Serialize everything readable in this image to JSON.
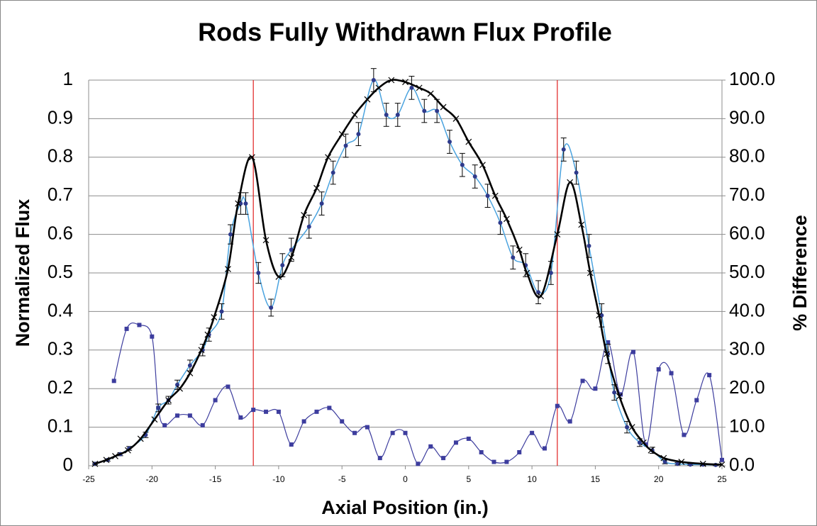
{
  "chart_data": {
    "type": "line",
    "title": "Rods Fully Withdrawn Flux Profile",
    "xlabel": "Axial Position (in.)",
    "ylabel": "Normalized Flux",
    "y2label": "% Difference",
    "xlim": [
      -25,
      25
    ],
    "xticks": [
      -25,
      -20,
      -15,
      -10,
      -5,
      0,
      5,
      10,
      15,
      20,
      25
    ],
    "ylim": [
      0,
      1
    ],
    "yticks": [
      0,
      0.1,
      0.2,
      0.3,
      0.4,
      0.5,
      0.6,
      0.7,
      0.8,
      0.9,
      1
    ],
    "y2lim": [
      0,
      100
    ],
    "y2ticks": [
      {
        "value": 0,
        "label": "0.0"
      },
      {
        "value": 10,
        "label": "10.0"
      },
      {
        "value": 20,
        "label": "20.0"
      },
      {
        "value": 30,
        "label": "30.0"
      },
      {
        "value": 40,
        "label": "40.0"
      },
      {
        "value": 50,
        "label": "50.0"
      },
      {
        "value": 60,
        "label": "60.0"
      },
      {
        "value": 70,
        "label": "70.0"
      },
      {
        "value": 80,
        "label": "80.0"
      },
      {
        "value": 90,
        "label": "90.0"
      },
      {
        "value": 100,
        "label": "100.0"
      }
    ],
    "grid": true,
    "vlines": [
      -12,
      12
    ],
    "vline_color": "#e02020",
    "series": [
      {
        "color": "#000000",
        "marker": "x",
        "line_width": 2.6,
        "x": [
          -24.5,
          -23.6,
          -22.9,
          -21.9,
          -20.9,
          -19.8,
          -18.7,
          -17.8,
          -17,
          -16.1,
          -15.6,
          -15.1,
          -14,
          -13.2,
          -12.1,
          -11,
          -10,
          -9,
          -8,
          -7,
          -6.1,
          -5,
          -4,
          -3,
          -2.1,
          -1.1,
          0,
          1.1,
          2,
          3,
          4,
          5,
          6.1,
          7.1,
          8,
          9,
          9.6,
          10.7,
          12,
          13,
          13.9,
          14.6,
          15.3,
          15.9,
          16.9,
          17.9,
          18.8,
          19.4,
          20.4,
          21.8,
          23.5,
          25
        ],
        "values": [
          0.005,
          0.015,
          0.025,
          0.04,
          0.07,
          0.12,
          0.17,
          0.2,
          0.24,
          0.3,
          0.34,
          0.385,
          0.51,
          0.68,
          0.8,
          0.585,
          0.49,
          0.54,
          0.65,
          0.72,
          0.8,
          0.86,
          0.91,
          0.95,
          0.98,
          1,
          0.995,
          0.98,
          0.965,
          0.93,
          0.9,
          0.84,
          0.78,
          0.7,
          0.64,
          0.56,
          0.5,
          0.44,
          0.6,
          0.735,
          0.625,
          0.5,
          0.39,
          0.29,
          0.18,
          0.1,
          0.06,
          0.04,
          0.02,
          0.01,
          0.005,
          0.003
        ]
      },
      {
        "color": "#4aa3df",
        "marker_color": "#2e3a8c",
        "marker": "circle",
        "line_width": 1.5,
        "x": [
          -24.5,
          -23.5,
          -22.5,
          -21.8,
          -20.5,
          -19.5,
          -18.7,
          -18,
          -17,
          -16,
          -15.5,
          -14.5,
          -13.8,
          -13,
          -12.6,
          -11.6,
          -10.6,
          -9.7,
          -9,
          -7.6,
          -6.6,
          -5.7,
          -4.7,
          -3.7,
          -2.5,
          -1.5,
          -0.6,
          0.5,
          1.5,
          2.5,
          3.5,
          4.5,
          5.5,
          6.5,
          7.5,
          8.5,
          9.5,
          10.5,
          11.5,
          12.5,
          13.5,
          14.5,
          15.5,
          16,
          16.5,
          17.5,
          18.5,
          19.5,
          20.5,
          21.5,
          22.5,
          23.5,
          24.5
        ],
        "values": [
          0.005,
          0.015,
          0.03,
          0.045,
          0.08,
          0.15,
          0.17,
          0.21,
          0.26,
          0.3,
          0.34,
          0.4,
          0.6,
          0.68,
          0.68,
          0.5,
          0.41,
          0.52,
          0.56,
          0.62,
          0.68,
          0.76,
          0.83,
          0.86,
          1,
          0.91,
          0.91,
          0.98,
          0.92,
          0.92,
          0.84,
          0.78,
          0.75,
          0.7,
          0.63,
          0.54,
          0.52,
          0.45,
          0.5,
          0.82,
          0.76,
          0.57,
          0.39,
          0.29,
          0.19,
          0.1,
          0.06,
          0.04,
          0.01,
          0.005,
          0.003,
          0.003,
          0.002
        ],
        "errors": [
          0.002,
          0.003,
          0.004,
          0.005,
          0.007,
          0.01,
          0.01,
          0.012,
          0.014,
          0.015,
          0.017,
          0.02,
          0.025,
          0.028,
          0.028,
          0.027,
          0.022,
          0.03,
          0.03,
          0.03,
          0.03,
          0.03,
          0.03,
          0.03,
          0.03,
          0.03,
          0.03,
          0.03,
          0.03,
          0.03,
          0.03,
          0.03,
          0.03,
          0.03,
          0.03,
          0.03,
          0.03,
          0.03,
          0.03,
          0.03,
          0.03,
          0.03,
          0.03,
          0.025,
          0.02,
          0.015,
          0.01,
          0.008,
          0.005,
          0.003,
          0.002,
          0.002,
          0.002
        ]
      },
      {
        "color": "#3d3d9e",
        "marker": "square",
        "line_width": 1.2,
        "axis": "y2",
        "x": [
          -23,
          -22,
          -21,
          -20,
          -19.5,
          -19,
          -18,
          -17,
          -16,
          -15,
          -14,
          -13,
          -12,
          -11,
          -10,
          -9,
          -8,
          -7,
          -6,
          -5,
          -4,
          -3,
          -2,
          -1,
          0,
          1,
          2,
          3,
          4,
          5,
          6,
          7,
          8,
          9,
          10,
          11,
          12,
          13,
          14,
          15,
          16,
          17,
          18,
          19,
          20,
          21,
          22,
          23,
          24,
          25
        ],
        "values": [
          22,
          35.5,
          36.5,
          33.5,
          15,
          10.5,
          13,
          13,
          10.5,
          17,
          20.5,
          12.5,
          14.5,
          14,
          14,
          5.5,
          11.5,
          14,
          15,
          11.5,
          8.5,
          10,
          2,
          8.5,
          8.5,
          0.5,
          5,
          2,
          6,
          7,
          3.5,
          1,
          1,
          3.5,
          8.5,
          4.5,
          15.5,
          11.5,
          22,
          20,
          32,
          18.5,
          29.5,
          5.5,
          25,
          24,
          8,
          17,
          23.5,
          1.5
        ]
      }
    ]
  }
}
